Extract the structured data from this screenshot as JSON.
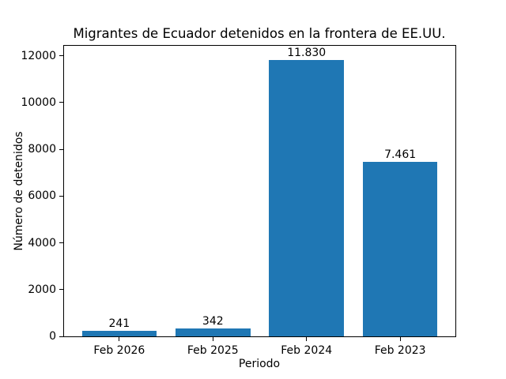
{
  "chart_data": {
    "type": "bar",
    "title": "Migrantes de Ecuador detenidos en la frontera de EE.UU.",
    "xlabel": "Periodo",
    "ylabel": "Número de detenidos",
    "categories": [
      "Feb 2026",
      "Feb 2025",
      "Feb 2024",
      "Feb 2023"
    ],
    "values": [
      241,
      342,
      11830,
      7461
    ],
    "value_labels": [
      "241",
      "342",
      "11.830",
      "7.461"
    ],
    "yticks": [
      0,
      2000,
      4000,
      6000,
      8000,
      10000,
      12000
    ],
    "ylim": [
      0,
      12422
    ],
    "bar_color": "#1f77b4",
    "text_color": "#000000",
    "grid": false,
    "legend_position": "none"
  }
}
